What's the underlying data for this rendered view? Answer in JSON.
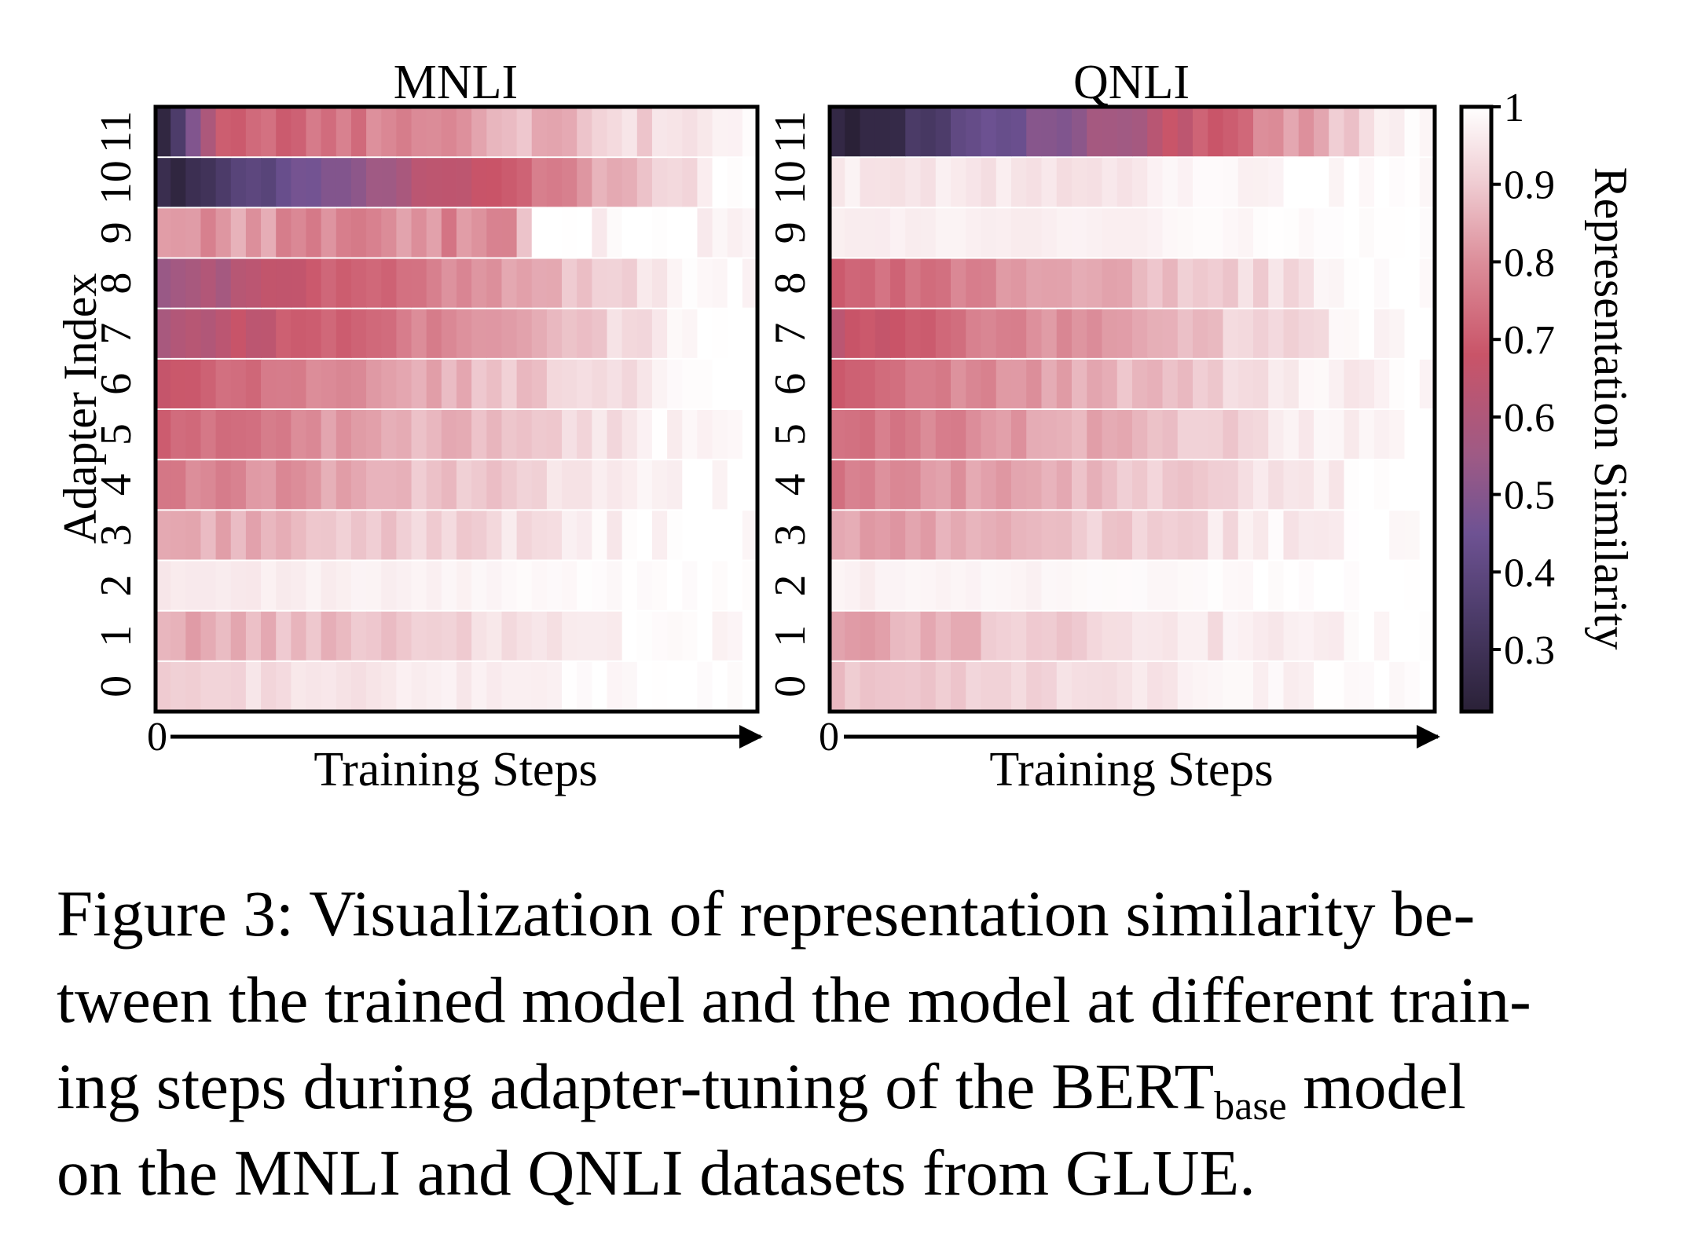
{
  "chart_data": [
    {
      "type": "heatmap",
      "title": "MNLI",
      "xlabel": "Training Steps",
      "x_origin_label": "0",
      "ylabel": "Adapter Index",
      "y_tick_labels": [
        "0",
        "1",
        "2",
        "3",
        "4",
        "5",
        "6",
        "7",
        "8",
        "9",
        "10",
        "11"
      ],
      "n_steps": 40,
      "rows": [
        {
          "index": 0,
          "start": 0.92,
          "mid": 0.95,
          "end": 1.0,
          "plateau": 0.38,
          "fade_end": 0.9,
          "noise": 0.02
        },
        {
          "index": 1,
          "start": 0.84,
          "mid": 0.9,
          "end": 1.0,
          "plateau": 0.4,
          "fade_end": 0.92,
          "noise": 0.03
        },
        {
          "index": 2,
          "start": 0.96,
          "mid": 0.97,
          "end": 1.0,
          "plateau": 0.4,
          "fade_end": 0.9,
          "noise": 0.01
        },
        {
          "index": 3,
          "start": 0.84,
          "mid": 0.88,
          "end": 1.0,
          "plateau": 0.3,
          "fade_end": 0.92,
          "noise": 0.03
        },
        {
          "index": 4,
          "start": 0.76,
          "mid": 0.84,
          "end": 1.0,
          "plateau": 0.3,
          "fade_end": 0.95,
          "noise": 0.03
        },
        {
          "index": 5,
          "start": 0.7,
          "mid": 0.8,
          "end": 1.0,
          "plateau": 0.25,
          "fade_end": 0.95,
          "noise": 0.03
        },
        {
          "index": 6,
          "start": 0.66,
          "mid": 0.78,
          "end": 1.0,
          "plateau": 0.25,
          "fade_end": 0.95,
          "noise": 0.03
        },
        {
          "index": 7,
          "start": 0.6,
          "mid": 0.72,
          "end": 1.0,
          "plateau": 0.3,
          "fade_end": 0.96,
          "noise": 0.03
        },
        {
          "index": 8,
          "start": 0.55,
          "mid": 0.7,
          "end": 1.0,
          "plateau": 0.3,
          "fade_end": 0.96,
          "noise": 0.03
        },
        {
          "index": 9,
          "start": 0.82,
          "mid": 0.78,
          "end": 0.97,
          "plateau": 0.6,
          "fade_end": 0.62,
          "noise": 0.05
        },
        {
          "index": 10,
          "start": 0.25,
          "mid": 0.55,
          "end": 0.98,
          "plateau": 0.35,
          "fade_end": 0.95,
          "noise": 0.03
        },
        {
          "index": 11,
          "start": 0.22,
          "mid": 0.68,
          "end": 0.98,
          "plateau": 0.1,
          "fade_end": 0.98,
          "noise": 0.04
        }
      ]
    },
    {
      "type": "heatmap",
      "title": "QNLI",
      "xlabel": "Training Steps",
      "x_origin_label": "0",
      "ylabel": "",
      "y_tick_labels": [
        "0",
        "1",
        "2",
        "3",
        "4",
        "5",
        "6",
        "7",
        "8",
        "9",
        "10",
        "11"
      ],
      "n_steps": 40,
      "rows": [
        {
          "index": 0,
          "start": 0.88,
          "mid": 0.92,
          "end": 1.0,
          "plateau": 0.3,
          "fade_end": 0.9,
          "noise": 0.02
        },
        {
          "index": 1,
          "start": 0.82,
          "mid": 0.9,
          "end": 1.0,
          "plateau": 0.35,
          "fade_end": 0.92,
          "noise": 0.03
        },
        {
          "index": 2,
          "start": 0.97,
          "mid": 0.98,
          "end": 1.0,
          "plateau": 0.4,
          "fade_end": 0.9,
          "noise": 0.01
        },
        {
          "index": 3,
          "start": 0.82,
          "mid": 0.88,
          "end": 1.0,
          "plateau": 0.35,
          "fade_end": 0.92,
          "noise": 0.03
        },
        {
          "index": 4,
          "start": 0.76,
          "mid": 0.84,
          "end": 1.0,
          "plateau": 0.3,
          "fade_end": 0.95,
          "noise": 0.03
        },
        {
          "index": 5,
          "start": 0.72,
          "mid": 0.8,
          "end": 1.0,
          "plateau": 0.25,
          "fade_end": 0.95,
          "noise": 0.03
        },
        {
          "index": 6,
          "start": 0.72,
          "mid": 0.8,
          "end": 1.0,
          "plateau": 0.25,
          "fade_end": 0.95,
          "noise": 0.03
        },
        {
          "index": 7,
          "start": 0.66,
          "mid": 0.78,
          "end": 1.0,
          "plateau": 0.3,
          "fade_end": 0.96,
          "noise": 0.03
        },
        {
          "index": 8,
          "start": 0.7,
          "mid": 0.8,
          "end": 1.0,
          "plateau": 0.3,
          "fade_end": 0.96,
          "noise": 0.03
        },
        {
          "index": 9,
          "start": 0.97,
          "mid": 0.97,
          "end": 1.0,
          "plateau": 0.4,
          "fade_end": 0.9,
          "noise": 0.01
        },
        {
          "index": 10,
          "start": 0.96,
          "mid": 0.95,
          "end": 1.0,
          "plateau": 0.4,
          "fade_end": 0.9,
          "noise": 0.02
        },
        {
          "index": 11,
          "start": 0.22,
          "mid": 0.6,
          "end": 0.97,
          "plateau": 0.5,
          "fade_end": 0.95,
          "noise": 0.04
        }
      ]
    }
  ],
  "colorbar": {
    "label": "Representation Similarity",
    "min": 0.22,
    "max": 1.0,
    "ticks": [
      {
        "value": 1.0,
        "label": "1"
      },
      {
        "value": 0.9,
        "label": "0.9"
      },
      {
        "value": 0.8,
        "label": "0.8"
      },
      {
        "value": 0.7,
        "label": "0.7"
      },
      {
        "value": 0.6,
        "label": "0.6"
      },
      {
        "value": 0.5,
        "label": "0.5"
      },
      {
        "value": 0.4,
        "label": "0.4"
      },
      {
        "value": 0.3,
        "label": "0.3"
      }
    ],
    "stops": [
      {
        "value": 0.22,
        "color": "#2a2137"
      },
      {
        "value": 0.35,
        "color": "#4e3d6c"
      },
      {
        "value": 0.45,
        "color": "#6e5293"
      },
      {
        "value": 0.55,
        "color": "#9e5a85"
      },
      {
        "value": 0.68,
        "color": "#c95468"
      },
      {
        "value": 0.8,
        "color": "#dc8e9a"
      },
      {
        "value": 0.9,
        "color": "#efcbd1"
      },
      {
        "value": 1.0,
        "color": "#ffffff"
      }
    ]
  },
  "caption": {
    "line1": "Figure 3: Visualization of representation similarity be-",
    "line2": "tween the trained model and the model at different train-",
    "line3_a": "ing steps during adapter-tuning of the BERT",
    "line3_sub": "base",
    "line3_b": " model",
    "line4": "on the MNLI and QNLI datasets from GLUE."
  }
}
